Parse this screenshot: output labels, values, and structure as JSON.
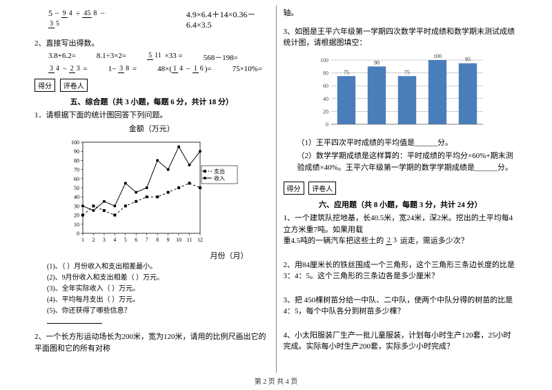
{
  "left": {
    "formula1": "5 − 9/4 ÷ 45/8 − 3/5",
    "formula2": "4.9×6.4＋14×0.36－6.4×3.5",
    "q2_title": "2、直接写出得数。",
    "calc": {
      "r1": [
        "3.8+6.2=",
        "8.1÷3×2=",
        "5/11 ×33 =",
        "568－198="
      ],
      "r2": [
        "3/4 − 2/3 =",
        "1− 3/8 =",
        "48×(1/4 − 1/6)=",
        "75×10%="
      ]
    },
    "score1": "得分",
    "score2": "评卷人",
    "section5": "五、综合题（共 3 小题，每题 6 分，共计 18 分）",
    "q1": "1．请根据下面的统计图回答下列问题。",
    "chart_title": "金额（万元）",
    "xlabel": "月份（月）",
    "legend1": "支出",
    "legend2": "收入",
    "line_chart": {
      "background_color": "#ffffff",
      "ymin": 0,
      "ymax": 100,
      "ystep": 10,
      "xvals": [
        1,
        2,
        3,
        4,
        5,
        6,
        7,
        8,
        9,
        10,
        11,
        12
      ],
      "income": [
        30,
        25,
        35,
        30,
        55,
        45,
        50,
        80,
        70,
        95,
        75,
        90
      ],
      "expense": [
        20,
        30,
        25,
        20,
        30,
        35,
        40,
        40,
        45,
        50,
        55,
        50
      ],
      "income_color": "#000000",
      "expense_color": "#000000",
      "grid_color": "#000000"
    },
    "qs": {
      "a": "(1)、（ ）月份收入和支出相差最小。",
      "b": "(2)、9月份收入和支出相差（ ）万元。",
      "c": "(3)、全年实际收入（ ）万元。",
      "d": "(4)、平均每月支出（ ）万元。",
      "e": "(5)、你还获得了哪些信息？"
    },
    "q2_rect": "2、一个长方形运动场长为200米，宽为120米，请用的比例尺画出它的平面图和它的所有对称"
  },
  "right": {
    "top": "轴。",
    "q3": "3、如图是王平六年级第一学期四次数学平时成绩和数学期末测试成绩统计图，请根据图填空：",
    "bar_chart": {
      "background_color": "#ffffff",
      "bar_color": "#4a7ebb",
      "grid_color": "#999999",
      "ylim": [
        0,
        100
      ],
      "ystep": 20,
      "labels": [
        "",
        "",
        "",
        "",
        ""
      ],
      "values": [
        75,
        90,
        75,
        100,
        95
      ],
      "value_labels": [
        "75",
        "90",
        "75",
        "100",
        "95"
      ]
    },
    "q3a": "（1）王平四次平时成绩的平均值是______分。",
    "q3b": "（2）数学学期成绩是这样算的：平时成绩的平均分×60%+期末测验成绩×40%。王平六年级第一学期的数学学期成绩是______分。",
    "score1": "得分",
    "score2": "评卷人",
    "section6": "六、应用题（共 8 小题，每题 3 分，共计 24 分）",
    "q1": "1、一个建筑队挖地基，长40.5米，宽24米，深2米。挖出的土平均每4立方米重7吨。如果用载重4.5吨的一辆汽车把这些土的 2/3 运走，需运多少次？",
    "q2": "2、用84厘米长的铁丝围成一个三角形，这个三角形三条边长度的比是3：4：5。这个三角形的三条边各是多少厘米？",
    "q3b2": "3、把 450棵树苗分给一中队、二中队，使两个中队分得的树苗的比是4：5，每个中队各分到树苗多少棵？",
    "q4": "4、小太阳服装厂生产一批儿童服装，计划每小时生产120套，25小时完成。实际每小时生产200套，实际多少小时完成？"
  },
  "footer": "第 2 页 共 4 页"
}
